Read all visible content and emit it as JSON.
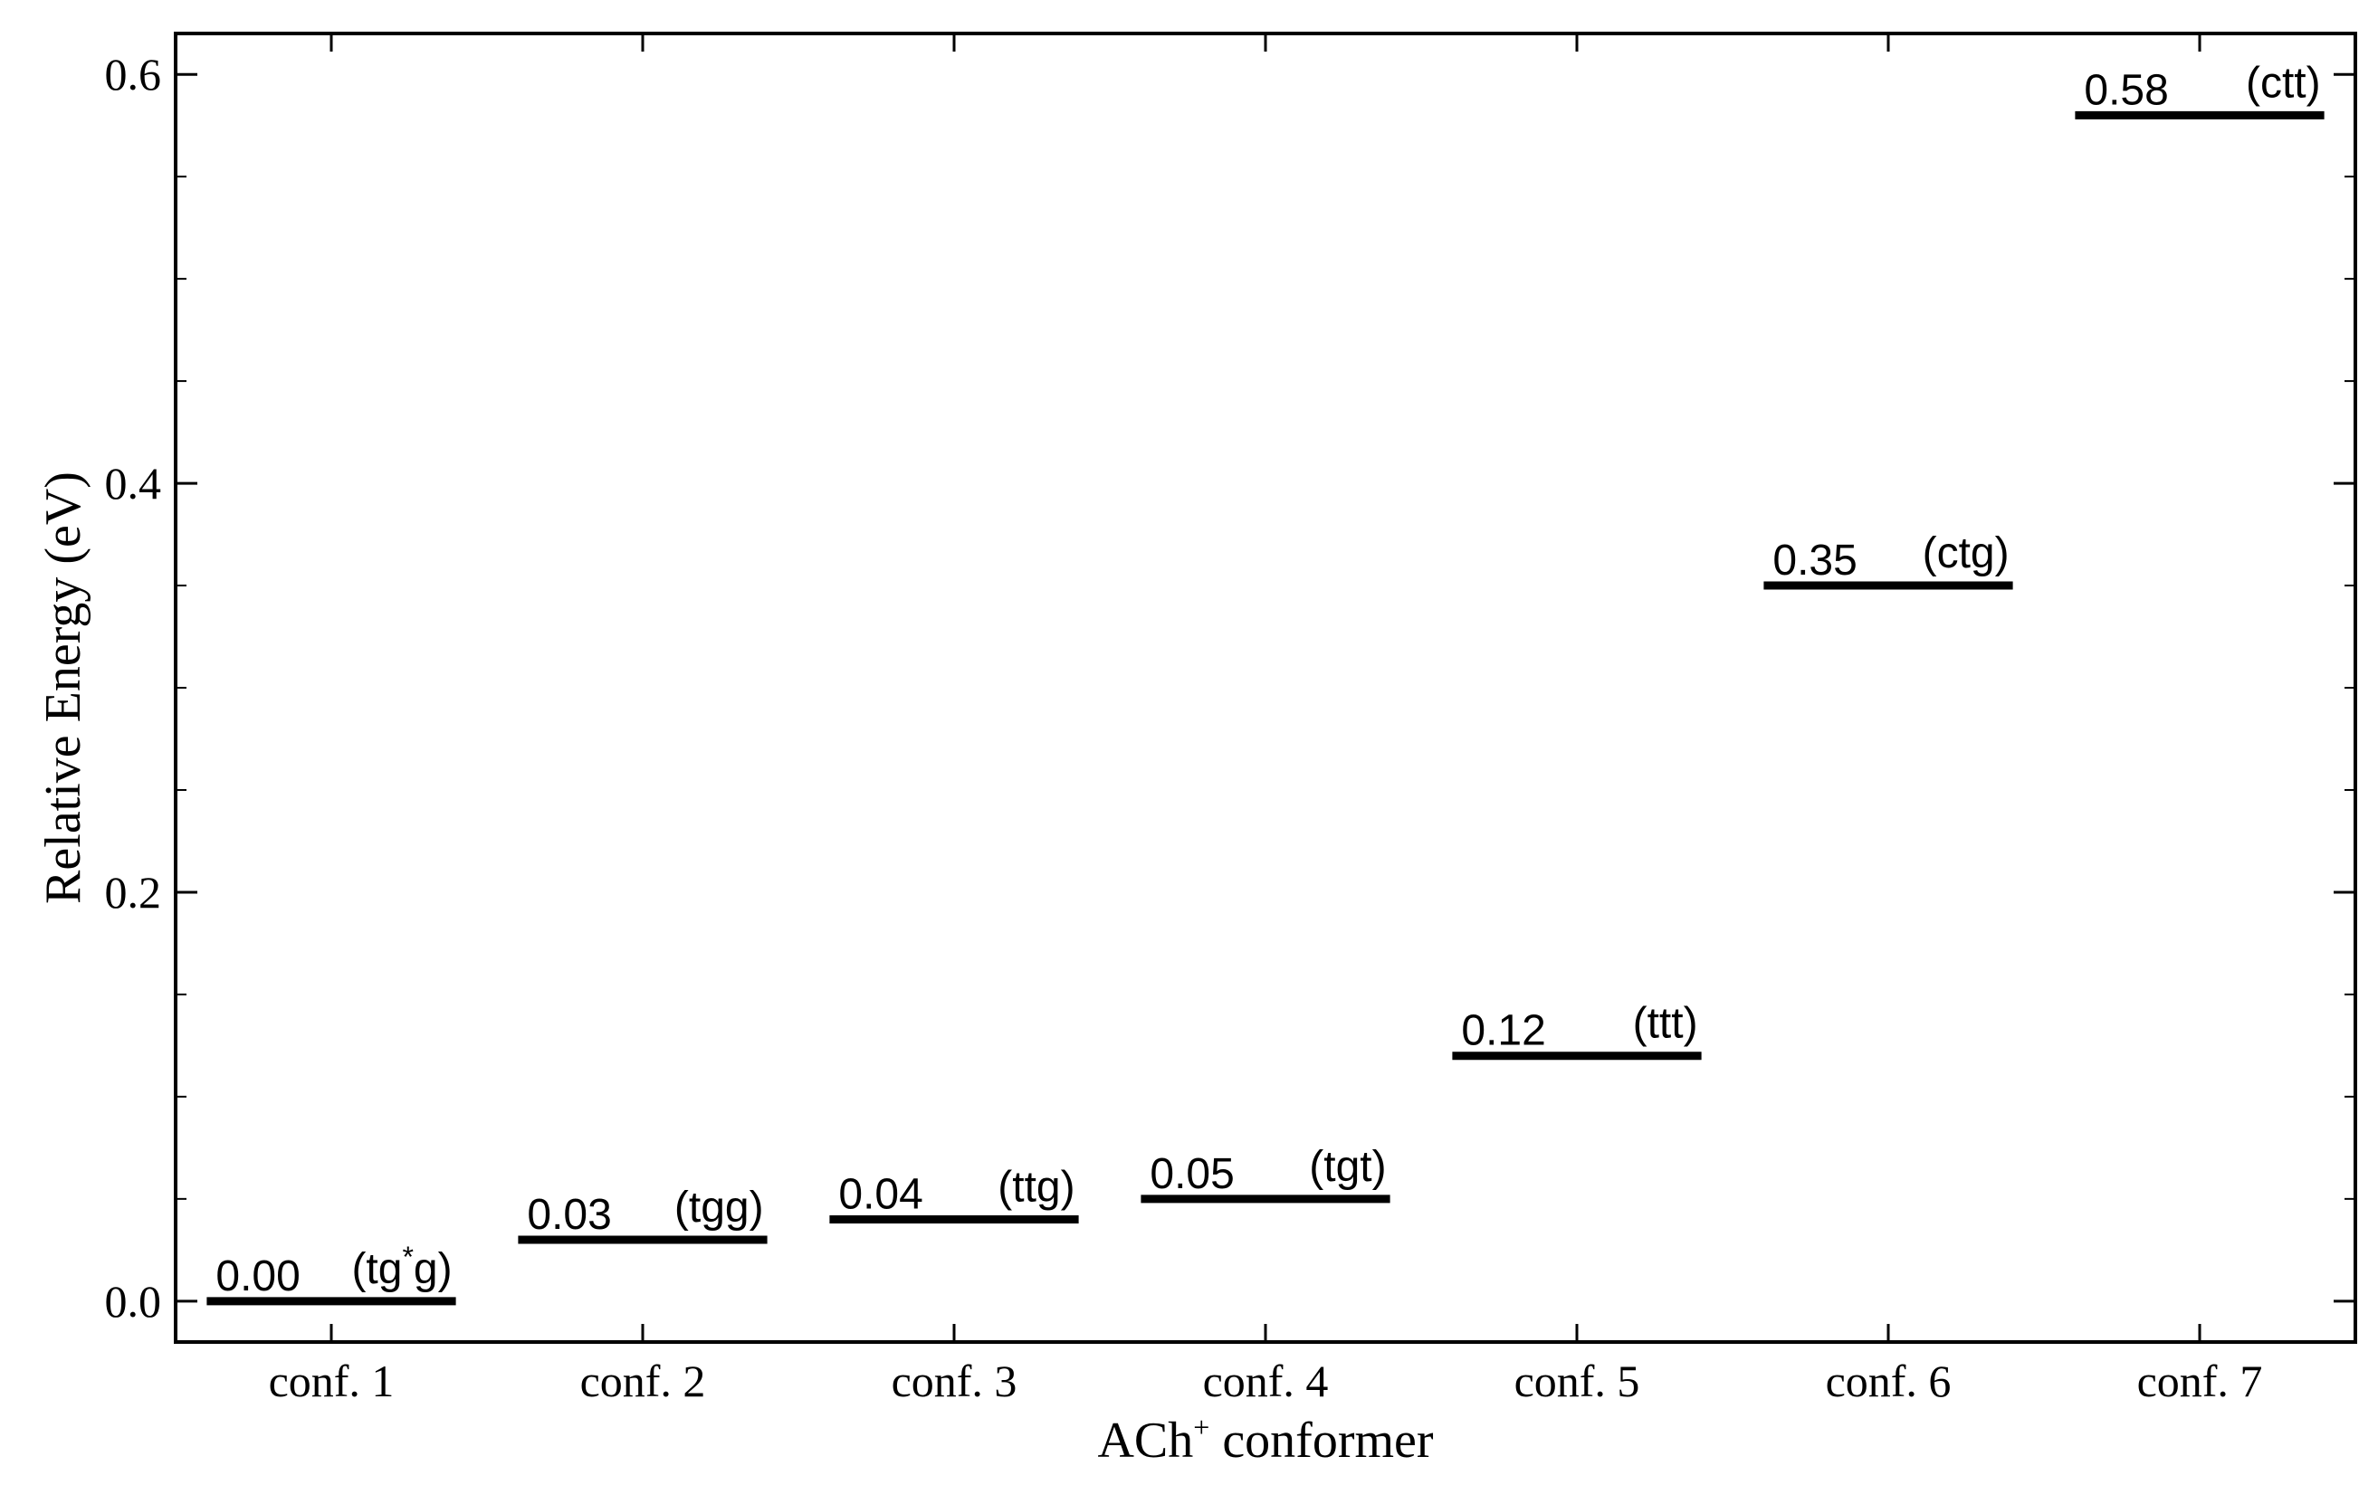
{
  "chart_data": {
    "type": "bar",
    "xlabel": {
      "base": "ACh",
      "sup": "+",
      "rest": " conformer"
    },
    "ylabel": "Relative Energy (eV)",
    "ylim": [
      -0.02,
      0.62
    ],
    "yticks": [
      0.0,
      0.2,
      0.4,
      0.6
    ],
    "ytick_labels": [
      "0.0",
      "0.2",
      "0.4",
      "0.6"
    ],
    "categories": [
      "conf. 1",
      "conf. 2",
      "conf. 3",
      "conf. 4",
      "conf. 5",
      "conf. 6",
      "conf. 7"
    ],
    "values": [
      0.0,
      0.03,
      0.04,
      0.05,
      0.12,
      0.35,
      0.58
    ],
    "value_labels": [
      "0.00",
      "0.03",
      "0.04",
      "0.05",
      "0.12",
      "0.35",
      "0.58"
    ],
    "conformer_labels": [
      {
        "pre": "(tg",
        "sup": "*",
        "post": "g)"
      },
      {
        "pre": "(tgg)",
        "sup": "",
        "post": ""
      },
      {
        "pre": "(ttg)",
        "sup": "",
        "post": ""
      },
      {
        "pre": "(tgt)",
        "sup": "",
        "post": ""
      },
      {
        "pre": "(ttt)",
        "sup": "",
        "post": ""
      },
      {
        "pre": "(ctg)",
        "sup": "",
        "post": ""
      },
      {
        "pre": "(ctt)",
        "sup": "",
        "post": ""
      }
    ],
    "grid": false,
    "legend": "none",
    "line_color": "#000000"
  }
}
